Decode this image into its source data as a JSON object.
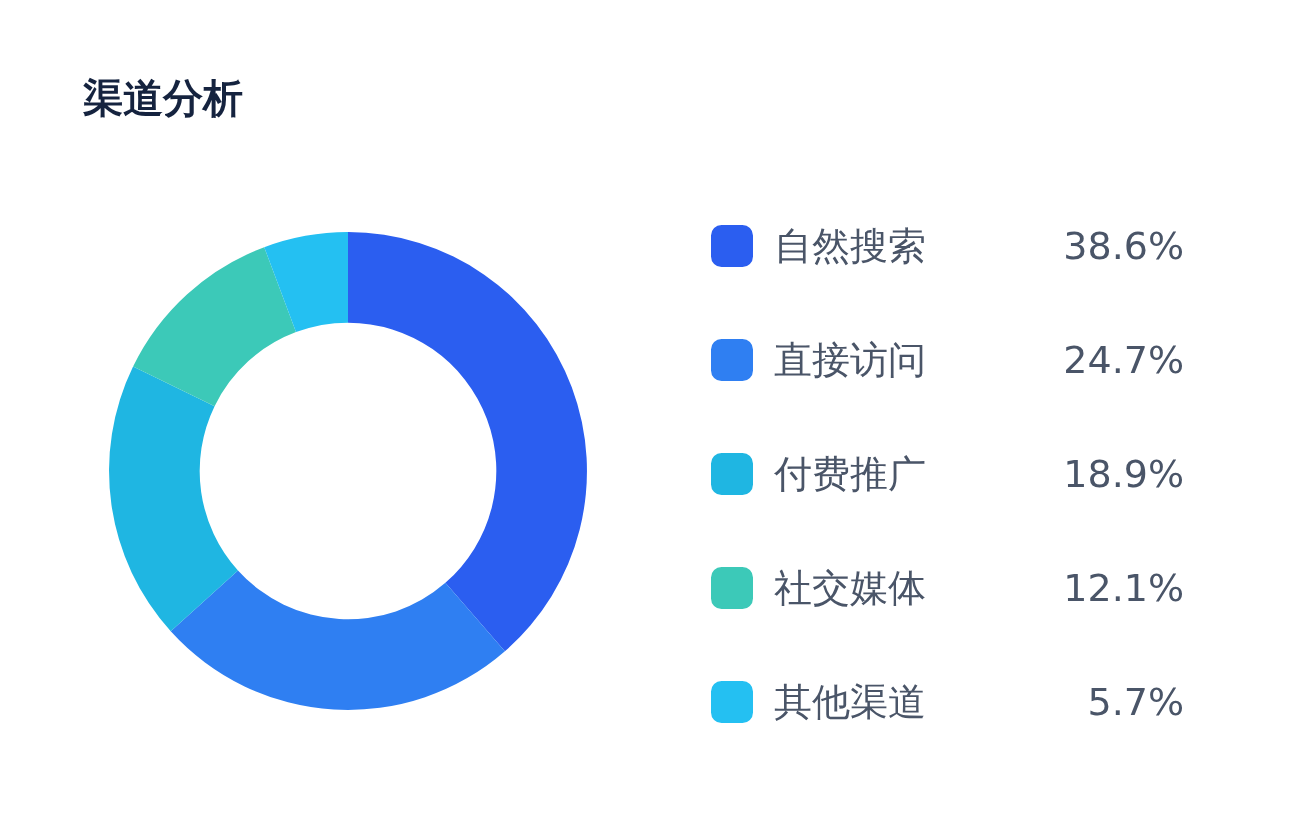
{
  "chart_data": {
    "type": "donut",
    "title": "渠道分析",
    "categories": [
      "自然搜索",
      "直接访问",
      "付费推广",
      "社交媒体",
      "其他渠道"
    ],
    "values": [
      38.6,
      24.7,
      18.9,
      12.1,
      5.7
    ],
    "value_labels": [
      "38.6%",
      "24.7%",
      "18.9%",
      "12.1%",
      "5.7%"
    ],
    "colors": [
      "#2b5ef0",
      "#2f7ff2",
      "#1fb6e2",
      "#3cc9b8",
      "#24c0f2"
    ],
    "legend": "right"
  }
}
